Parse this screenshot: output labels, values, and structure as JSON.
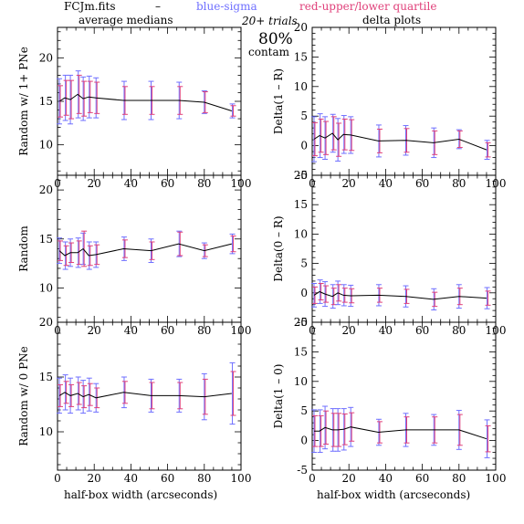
{
  "header": {
    "file": "FCJm.fits",
    "dash": "–",
    "blue_label": "blue-sigma",
    "red_label": "red-upper/lower quartile",
    "trials": "20+ trials",
    "contam_pct": "80%",
    "contam_word": "contam",
    "left_title": "average medians",
    "right_title": "delta plots",
    "xlabel": "half-box width (arcseconds)"
  },
  "colors": {
    "blue": "#6f6fff",
    "red": "#e0407a",
    "line": "#000000",
    "frame": "#000000"
  },
  "chart_data": [
    {
      "type": "line",
      "ylabel": "Random w/ 1+ PNe",
      "xlim": [
        0,
        100
      ],
      "ylim": [
        6.5,
        23.5
      ],
      "xticks": [
        0,
        20,
        40,
        60,
        80,
        100
      ],
      "yticks": [
        10,
        15,
        20
      ],
      "x": [
        1,
        4,
        7,
        11,
        14,
        17,
        21,
        36,
        51,
        66,
        80,
        95
      ],
      "y": [
        15.0,
        15.4,
        15.2,
        15.8,
        15.3,
        15.5,
        15.4,
        15.1,
        15.1,
        15.1,
        14.9,
        13.9
      ],
      "sigma": [
        2.6,
        2.6,
        2.8,
        2.7,
        2.5,
        2.4,
        2.3,
        2.2,
        2.2,
        2.1,
        1.3,
        0.8
      ],
      "quartile": [
        1.8,
        2.0,
        2.2,
        2.2,
        2.0,
        1.8,
        1.8,
        1.6,
        1.6,
        1.6,
        1.2,
        0.6
      ]
    },
    {
      "type": "line",
      "ylabel": "Delta(1 – R)",
      "xlim": [
        0,
        100
      ],
      "ylim": [
        -5,
        20
      ],
      "xticks": [
        0,
        20,
        40,
        60,
        80,
        100
      ],
      "yticks": [
        -5,
        0,
        5,
        10,
        15,
        20
      ],
      "x": [
        1,
        4,
        7,
        11,
        14,
        17,
        21,
        36,
        51,
        66,
        80,
        95
      ],
      "y": [
        1.1,
        1.7,
        1.3,
        2.1,
        1.0,
        1.9,
        1.8,
        0.8,
        0.9,
        0.5,
        1.1,
        -0.7
      ],
      "sigma": [
        3.8,
        3.7,
        3.6,
        3.2,
        3.6,
        3.2,
        3.1,
        2.7,
        2.5,
        2.5,
        1.6,
        1.6
      ],
      "quartile": [
        2.8,
        2.8,
        2.8,
        2.8,
        2.8,
        2.6,
        2.6,
        2.0,
        2.0,
        2.0,
        1.4,
        1.2
      ]
    },
    {
      "type": "line",
      "ylabel": "Random",
      "xlim": [
        0,
        100
      ],
      "ylim": [
        6.5,
        21.5
      ],
      "xticks": [
        0,
        20,
        40,
        60,
        80,
        100
      ],
      "yticks": [
        10,
        15,
        20
      ],
      "x": [
        1,
        4,
        7,
        11,
        14,
        17,
        21,
        36,
        51,
        66,
        80,
        95
      ],
      "y": [
        13.8,
        13.3,
        13.6,
        13.6,
        14.0,
        13.3,
        13.4,
        14.0,
        13.8,
        14.5,
        13.8,
        14.5
      ],
      "sigma": [
        1.3,
        1.4,
        1.4,
        1.5,
        1.6,
        1.4,
        1.3,
        1.2,
        1.2,
        1.3,
        0.8,
        1.0
      ],
      "quartile": [
        1.0,
        1.0,
        1.0,
        1.2,
        1.8,
        1.0,
        1.0,
        0.9,
        0.9,
        1.2,
        0.6,
        0.8
      ]
    },
    {
      "type": "line",
      "ylabel": "Delta(0 – R)",
      "xlim": [
        0,
        100
      ],
      "ylim": [
        -5,
        20
      ],
      "xticks": [
        0,
        20,
        40,
        60,
        80,
        100
      ],
      "yticks": [
        -5,
        0,
        5,
        10,
        15,
        20
      ],
      "x": [
        1,
        4,
        7,
        11,
        14,
        17,
        21,
        36,
        51,
        66,
        80,
        95
      ],
      "y": [
        -0.4,
        0.2,
        -0.2,
        -0.6,
        0.0,
        -0.4,
        -0.5,
        -0.4,
        -0.6,
        -1.1,
        -0.6,
        -0.9
      ],
      "sigma": [
        2.0,
        2.0,
        2.1,
        2.0,
        2.0,
        1.8,
        1.8,
        1.8,
        1.8,
        1.8,
        2.0,
        1.8
      ],
      "quartile": [
        1.4,
        1.4,
        1.4,
        1.4,
        1.4,
        1.2,
        1.2,
        1.2,
        1.2,
        1.2,
        1.4,
        1.2
      ]
    },
    {
      "type": "line",
      "ylabel": "Random w/ 0 PNe",
      "xlim": [
        0,
        100
      ],
      "ylim": [
        6.5,
        20
      ],
      "xticks": [
        0,
        20,
        40,
        60,
        80,
        100
      ],
      "yticks": [
        10,
        15,
        20
      ],
      "x": [
        1,
        4,
        7,
        11,
        14,
        17,
        21,
        36,
        51,
        66,
        80,
        95
      ],
      "y": [
        13.3,
        13.6,
        13.3,
        13.5,
        13.2,
        13.4,
        13.1,
        13.6,
        13.3,
        13.3,
        13.2,
        13.5
      ],
      "sigma": [
        1.6,
        1.6,
        1.6,
        1.5,
        1.5,
        1.5,
        1.3,
        1.4,
        1.5,
        1.5,
        2.1,
        2.8
      ],
      "quartile": [
        1.0,
        1.0,
        1.0,
        1.0,
        1.0,
        1.0,
        0.9,
        1.0,
        1.2,
        1.2,
        1.6,
        2.0
      ]
    },
    {
      "type": "line",
      "ylabel": "Delta(1 – 0)",
      "xlim": [
        0,
        100
      ],
      "ylim": [
        -5,
        20
      ],
      "xticks": [
        0,
        20,
        40,
        60,
        80,
        100
      ],
      "yticks": [
        -5,
        0,
        5,
        10,
        15,
        20
      ],
      "x": [
        1,
        4,
        7,
        11,
        14,
        17,
        21,
        36,
        51,
        66,
        80,
        95
      ],
      "y": [
        1.6,
        1.6,
        2.2,
        1.8,
        1.8,
        1.9,
        2.3,
        1.4,
        1.8,
        1.8,
        1.8,
        0.3
      ],
      "sigma": [
        3.6,
        3.6,
        3.6,
        3.6,
        3.6,
        3.5,
        3.3,
        2.2,
        2.8,
        2.6,
        3.3,
        3.2
      ],
      "quartile": [
        2.6,
        2.6,
        2.8,
        2.8,
        2.8,
        2.6,
        2.4,
        1.8,
        2.2,
        2.2,
        2.6,
        2.2
      ]
    }
  ]
}
